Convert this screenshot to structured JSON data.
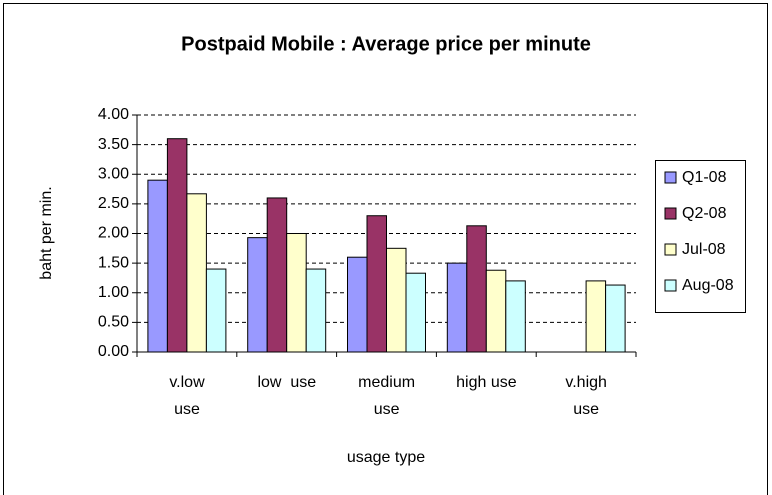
{
  "chart_data": {
    "type": "bar",
    "title": "Postpaid Mobile : Average price per minute",
    "x_label": "usage type",
    "y_label": "baht per min.",
    "categories": [
      "v.low\nuse",
      "low  use",
      "medium\nuse",
      "high use",
      "v.high\nuse"
    ],
    "series": [
      {
        "name": "Q1-08",
        "color": "#9999ff",
        "values": [
          2.9,
          1.93,
          1.6,
          1.5,
          null
        ]
      },
      {
        "name": "Q2-08",
        "color": "#993366",
        "values": [
          3.6,
          2.6,
          2.3,
          2.13,
          null
        ]
      },
      {
        "name": "Jul-08",
        "color": "#ffffcc",
        "values": [
          2.67,
          2.0,
          1.75,
          1.38,
          1.2
        ]
      },
      {
        "name": "Aug-08",
        "color": "#ccffff",
        "values": [
          1.4,
          1.4,
          1.33,
          1.2,
          1.13
        ]
      }
    ],
    "ylim": [
      0,
      4
    ],
    "yticks": [
      {
        "value": 0,
        "label": "0.00"
      },
      {
        "value": 0.5,
        "label": "0.50"
      },
      {
        "value": 1,
        "label": "1.00"
      },
      {
        "value": 1.5,
        "label": "1.50"
      },
      {
        "value": 2,
        "label": "2.00"
      },
      {
        "value": 2.5,
        "label": "2.50"
      },
      {
        "value": 3,
        "label": "3.00"
      },
      {
        "value": 3.5,
        "label": "3.50"
      },
      {
        "value": 4,
        "label": "4.00"
      }
    ],
    "grid": true,
    "legend": "right"
  }
}
